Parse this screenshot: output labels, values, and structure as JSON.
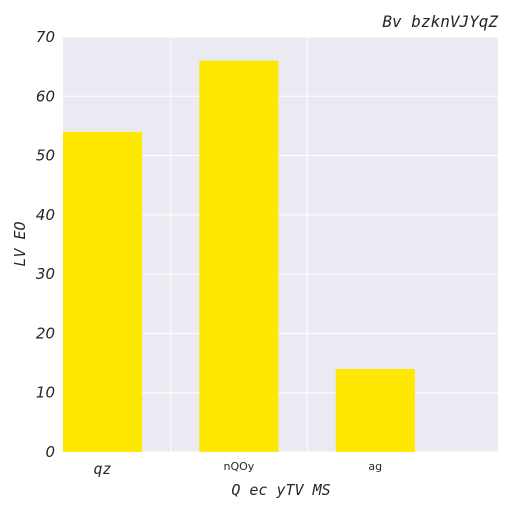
{
  "chart_data": {
    "type": "bar",
    "title": "Bv bzknVJYqZ",
    "xlabel": "Q ec yTV MS",
    "ylabel": "LV EO",
    "categories": [
      "qz",
      "nQOy",
      "ag"
    ],
    "values": [
      54,
      66,
      14
    ],
    "ylim": [
      0,
      70
    ],
    "yticks": [
      0,
      10,
      20,
      30,
      40,
      50,
      60,
      70
    ],
    "grid": true,
    "colors": {
      "bar": "#ffe800",
      "plot_background": "#eaeaf2",
      "grid": "#ffffff"
    }
  }
}
